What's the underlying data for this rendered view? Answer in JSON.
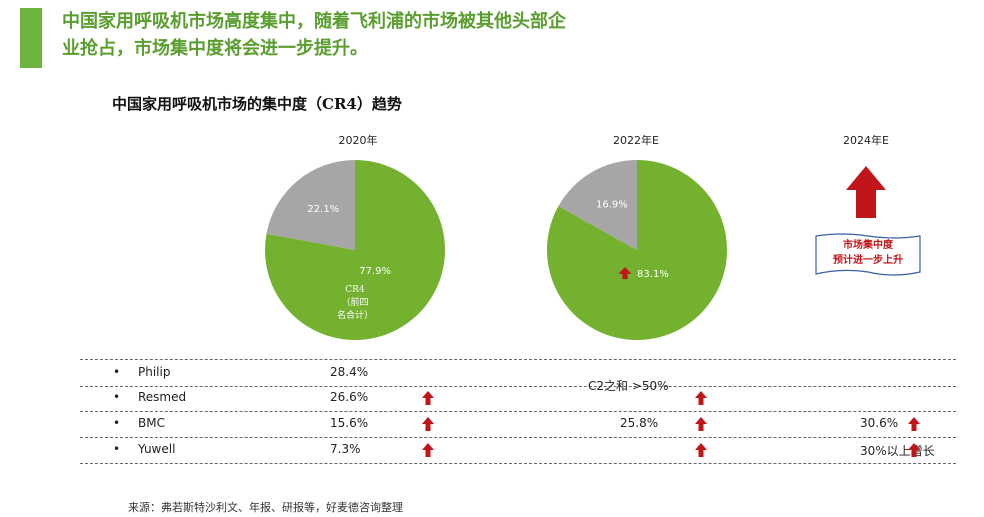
{
  "header": {
    "title_line1": "中国家用呼吸机市场高度集中，随着飞利浦的市场被其他头部企",
    "title_line2": "业抢占，市场集中度将会进一步提升。"
  },
  "chart_data": {
    "type": "pie",
    "title": "中国家用呼吸机市场的集中度（CR4）趋势",
    "charts": [
      {
        "year": "2020年",
        "slices": [
          {
            "label": "CR4（前四名合计）",
            "value": 77.9,
            "value_text": "77.9%",
            "color": "#73b12f"
          },
          {
            "label": "",
            "value": 22.1,
            "value_text": "22.1%",
            "color": "#a6a6a6"
          }
        ],
        "cr4_label_line1": "CR4",
        "cr4_label_line2": "（前四",
        "cr4_label_line3": "名合计）"
      },
      {
        "year": "2022年E",
        "slices": [
          {
            "label": "",
            "value": 83.1,
            "value_text": "83.1%",
            "color": "#73b12f",
            "trend": "up"
          },
          {
            "label": "",
            "value": 16.9,
            "value_text": "16.9%",
            "color": "#a6a6a6"
          }
        ]
      }
    ],
    "third_column": {
      "year": "2024年E",
      "note_line1": "市场集中度",
      "note_line2": "预计进一步上升"
    },
    "table": {
      "rows": [
        {
          "bullet": "•",
          "name": "Philip",
          "v2020": "28.4%",
          "arrow2020": false,
          "v2022": "",
          "arrow2022": false,
          "v2024": "",
          "arrow2024": false
        },
        {
          "bullet": "•",
          "name": "Resmed",
          "v2020": "26.6%",
          "arrow2020": true,
          "v2022": "",
          "arrow2022": true,
          "v2024": "",
          "arrow2024": false
        },
        {
          "bullet": "•",
          "name": "BMC",
          "v2020": "15.6%",
          "arrow2020": true,
          "v2022": "25.8%",
          "arrow2022": true,
          "v2024": "30.6%",
          "arrow2024": true
        },
        {
          "bullet": "•",
          "name": "Yuwell",
          "v2020": "7.3%",
          "arrow2020": true,
          "v2022": "",
          "arrow2022": true,
          "v2024": "30%以上增长",
          "arrow2024": true
        }
      ],
      "c2_note": "C2之和 >50%"
    }
  },
  "footer": {
    "source": "来源：弗若斯特沙利文、年报、研报等，好麦德咨询整理"
  },
  "colors": {
    "accent": "#6db33f",
    "headline": "#5a9e2f",
    "pie_green": "#73b12f",
    "pie_gray": "#a6a6a6",
    "arrow_red": "#c0161a"
  }
}
